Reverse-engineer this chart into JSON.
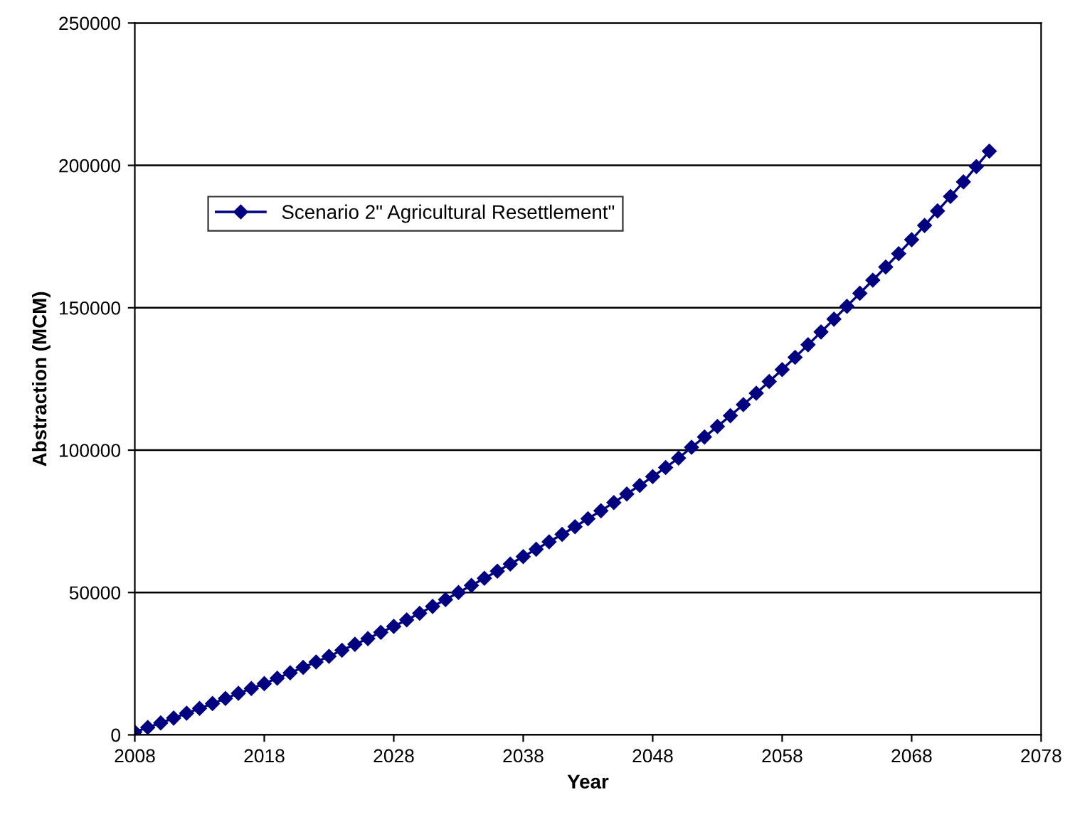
{
  "chart_data": {
    "type": "line",
    "xlabel": "Year",
    "ylabel": "Abstraction (MCM)",
    "x": [
      2008,
      2009,
      2010,
      2011,
      2012,
      2013,
      2014,
      2015,
      2016,
      2017,
      2018,
      2019,
      2020,
      2021,
      2022,
      2023,
      2024,
      2025,
      2026,
      2027,
      2028,
      2029,
      2030,
      2031,
      2032,
      2033,
      2034,
      2035,
      2036,
      2037,
      2038,
      2039,
      2040,
      2041,
      2042,
      2043,
      2044,
      2045,
      2046,
      2047,
      2048,
      2049,
      2050,
      2051,
      2052,
      2053,
      2054,
      2055,
      2056,
      2057,
      2058,
      2059,
      2060,
      2061,
      2062,
      2063,
      2064,
      2065,
      2066,
      2067,
      2068,
      2069,
      2070,
      2071,
      2072,
      2073,
      2074
    ],
    "series": [
      {
        "name": "Scenario 2\" Agricultural Resettlement\"",
        "color": "#000080",
        "values": [
          1000,
          2600,
          4200,
          5900,
          7600,
          9300,
          11000,
          12800,
          14600,
          16300,
          18000,
          19900,
          21800,
          23700,
          25600,
          27600,
          29700,
          31800,
          33800,
          36000,
          38100,
          40400,
          42700,
          45100,
          47500,
          50000,
          52500,
          55000,
          57500,
          60000,
          62600,
          65200,
          67800,
          70400,
          73100,
          75900,
          78700,
          81600,
          84600,
          87600,
          90700,
          93900,
          97200,
          101000,
          104600,
          108300,
          112100,
          116000,
          120000,
          124100,
          128300,
          132600,
          137000,
          141500,
          146000,
          150500,
          155100,
          159700,
          164300,
          169000,
          173900,
          178900,
          184000,
          189100,
          194200,
          199600,
          205000
        ]
      }
    ],
    "xlim": [
      2008,
      2078
    ],
    "xticks": [
      2008,
      2018,
      2028,
      2038,
      2048,
      2058,
      2068,
      2078
    ],
    "ylim": [
      0,
      250000
    ],
    "yticks": [
      0,
      50000,
      100000,
      150000,
      200000,
      250000
    ],
    "grid": "y",
    "legend": "top left",
    "marker": "diamond",
    "line_style": "solid"
  }
}
